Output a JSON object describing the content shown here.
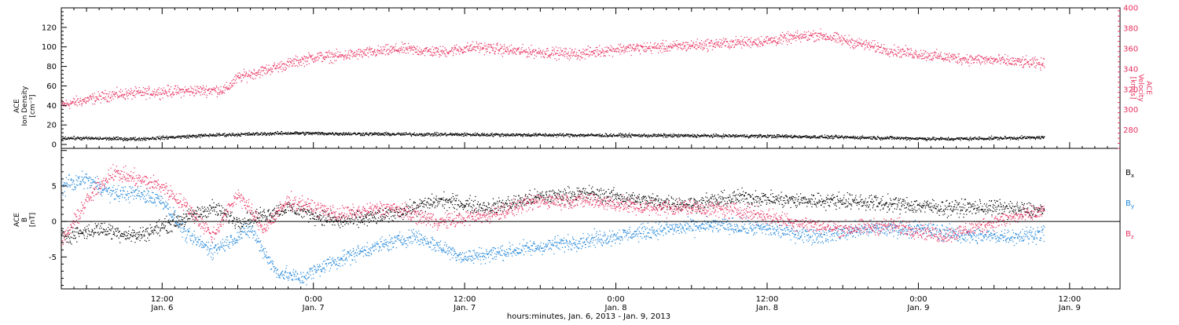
{
  "chart_data": [
    {
      "type": "scatter",
      "panel": "top",
      "left_axis": {
        "label_lines": [
          "ACE",
          "Ion Density",
          "[cm⁻³]"
        ],
        "ticks": [
          0,
          20,
          40,
          60,
          80,
          100,
          120
        ],
        "range": [
          -4,
          140
        ]
      },
      "right_axis": {
        "label_lines": [
          "ACE",
          "Velocity",
          "[km/s]"
        ],
        "ticks": [
          280,
          300,
          320,
          340,
          360,
          380,
          400
        ],
        "range": [
          262,
          400
        ],
        "color": "#e8315f"
      },
      "series": [
        {
          "axis": "right",
          "color": "#e8315f",
          "keypoints": [
            [
              0,
              305
            ],
            [
              4,
              315
            ],
            [
              8,
              318
            ],
            [
              13,
              320
            ],
            [
              14,
              332
            ],
            [
              17,
              342
            ],
            [
              20,
              352
            ],
            [
              22,
              353
            ],
            [
              27,
              360
            ],
            [
              30,
              357
            ],
            [
              33,
              362
            ],
            [
              36,
              358
            ],
            [
              41,
              355
            ],
            [
              44,
              360
            ],
            [
              48,
              362
            ],
            [
              52,
              365
            ],
            [
              56,
              368
            ],
            [
              60,
              374
            ],
            [
              63,
              366
            ],
            [
              66,
              358
            ],
            [
              70,
              352
            ],
            [
              72,
              350
            ],
            [
              74,
              349
            ],
            [
              78,
              345
            ],
            [
              82,
              340
            ],
            [
              86,
              338
            ],
            [
              90,
              340
            ],
            [
              94,
              336
            ],
            [
              98,
              336
            ],
            [
              102,
              334
            ],
            [
              106,
              338
            ],
            [
              108,
              341
            ],
            [
              110,
              350
            ],
            [
              113,
              356
            ],
            [
              116,
              361
            ],
            [
              118,
              365
            ],
            [
              120,
              360
            ],
            [
              122,
              356
            ]
          ]
        },
        {
          "axis": "left",
          "color": "#000000",
          "keypoints": [
            [
              0,
              7
            ],
            [
              6,
              6
            ],
            [
              12,
              10
            ],
            [
              18,
              12
            ],
            [
              26,
              11
            ],
            [
              40,
              10
            ],
            [
              56,
              9
            ],
            [
              66,
              7
            ],
            [
              70,
              6
            ],
            [
              80,
              8
            ],
            [
              90,
              9
            ],
            [
              100,
              8
            ],
            [
              108,
              11
            ],
            [
              116,
              12
            ],
            [
              122,
              9
            ]
          ]
        }
      ]
    },
    {
      "type": "scatter",
      "panel": "bottom",
      "left_axis": {
        "label_lines": [
          "ACE",
          "B",
          "[nT]"
        ],
        "ticks": [
          -5,
          0,
          5
        ],
        "range": [
          -9.5,
          10.3
        ]
      },
      "series": [
        {
          "name": "Bx",
          "color": "#000000",
          "keypoints": [
            [
              0,
              -2
            ],
            [
              3,
              -1
            ],
            [
              6,
              -2
            ],
            [
              9,
              0
            ],
            [
              12,
              2
            ],
            [
              14,
              0
            ],
            [
              16,
              1
            ],
            [
              18,
              2
            ],
            [
              22,
              0
            ],
            [
              26,
              1
            ],
            [
              30,
              3
            ],
            [
              34,
              2
            ],
            [
              38,
              3.5
            ],
            [
              42,
              4
            ],
            [
              46,
              3
            ],
            [
              50,
              2.5
            ],
            [
              54,
              3.5
            ],
            [
              58,
              3
            ],
            [
              62,
              3
            ],
            [
              66,
              2.5
            ],
            [
              70,
              2
            ],
            [
              74,
              2
            ],
            [
              78,
              1.5
            ],
            [
              82,
              1
            ],
            [
              86,
              2
            ],
            [
              90,
              -1
            ],
            [
              94,
              2
            ],
            [
              98,
              2.5
            ],
            [
              102,
              2
            ],
            [
              106,
              3.5
            ],
            [
              110,
              3.5
            ],
            [
              112,
              1.5
            ],
            [
              114,
              2.5
            ],
            [
              116,
              0
            ],
            [
              118,
              -1
            ],
            [
              120,
              0.5
            ],
            [
              122,
              2
            ]
          ]
        },
        {
          "name": "By",
          "color": "#1a82d8",
          "keypoints": [
            [
              0,
              5
            ],
            [
              2,
              6
            ],
            [
              4,
              4
            ],
            [
              6,
              4
            ],
            [
              8,
              3
            ],
            [
              10,
              -2
            ],
            [
              12,
              -4
            ],
            [
              15,
              -1
            ],
            [
              17,
              -7
            ],
            [
              19,
              -8
            ],
            [
              21,
              -6
            ],
            [
              24,
              -4
            ],
            [
              28,
              -2
            ],
            [
              32,
              -5
            ],
            [
              36,
              -4
            ],
            [
              40,
              -3
            ],
            [
              44,
              -2
            ],
            [
              48,
              -1
            ],
            [
              52,
              -0.5
            ],
            [
              56,
              -1
            ],
            [
              60,
              -2
            ],
            [
              64,
              -1
            ],
            [
              68,
              -1
            ],
            [
              72,
              -2
            ],
            [
              76,
              -2
            ],
            [
              80,
              -1
            ],
            [
              84,
              -3
            ],
            [
              88,
              -1
            ],
            [
              90,
              -3
            ],
            [
              94,
              -1
            ],
            [
              98,
              -3
            ],
            [
              102,
              1
            ],
            [
              106,
              3
            ],
            [
              108,
              3.5
            ],
            [
              110,
              2
            ],
            [
              112,
              -0.5
            ],
            [
              116,
              -1
            ],
            [
              120,
              -2
            ],
            [
              122,
              -2
            ]
          ]
        },
        {
          "name": "Bz",
          "color": "#e8315f",
          "keypoints": [
            [
              0,
              -3
            ],
            [
              2,
              3
            ],
            [
              4,
              7
            ],
            [
              6,
              6
            ],
            [
              8,
              5
            ],
            [
              10,
              2
            ],
            [
              12,
              -2
            ],
            [
              14,
              4
            ],
            [
              16,
              -1
            ],
            [
              18,
              3
            ],
            [
              22,
              1
            ],
            [
              26,
              2
            ],
            [
              30,
              0
            ],
            [
              34,
              1
            ],
            [
              38,
              3
            ],
            [
              42,
              3
            ],
            [
              46,
              2
            ],
            [
              50,
              2
            ],
            [
              54,
              1.5
            ],
            [
              58,
              0
            ],
            [
              62,
              -1
            ],
            [
              66,
              -0.5
            ],
            [
              70,
              -2
            ],
            [
              74,
              0
            ],
            [
              78,
              1.5
            ],
            [
              82,
              2
            ],
            [
              86,
              3.5
            ],
            [
              88,
              0
            ],
            [
              90,
              -2
            ],
            [
              92,
              -1
            ],
            [
              94,
              0
            ],
            [
              98,
              -2
            ],
            [
              102,
              -1
            ],
            [
              106,
              -2
            ],
            [
              108,
              -1.5
            ],
            [
              110,
              -3
            ],
            [
              114,
              -2
            ],
            [
              118,
              -2
            ],
            [
              122,
              -3
            ]
          ]
        }
      ]
    }
  ],
  "x_axis": {
    "ticks": [
      {
        "time": "12:00",
        "day": "Jan. 6",
        "hour": 12
      },
      {
        "time": "0:00",
        "day": "Jan. 7",
        "hour": 24
      },
      {
        "time": "12:00",
        "day": "Jan. 7",
        "hour": 36
      },
      {
        "time": "0:00",
        "day": "Jan. 8",
        "hour": 48
      },
      {
        "time": "12:00",
        "day": "Jan. 8",
        "hour": 60
      },
      {
        "time": "0:00",
        "day": "Jan. 9",
        "hour": 72
      },
      {
        "time": "12:00",
        "day": "Jan. 9",
        "hour": 84
      }
    ],
    "range_hours": [
      4,
      88
    ],
    "data_end_hour": 82,
    "label": "hours:minutes, Jan.  6, 2013 - Jan.  9, 2013"
  },
  "legend": [
    {
      "label": "B",
      "sub": "x",
      "color": "#000000"
    },
    {
      "label": "B",
      "sub": "y",
      "color": "#1a82d8"
    },
    {
      "label": "B",
      "sub": "z",
      "color": "#e8315f"
    }
  ]
}
